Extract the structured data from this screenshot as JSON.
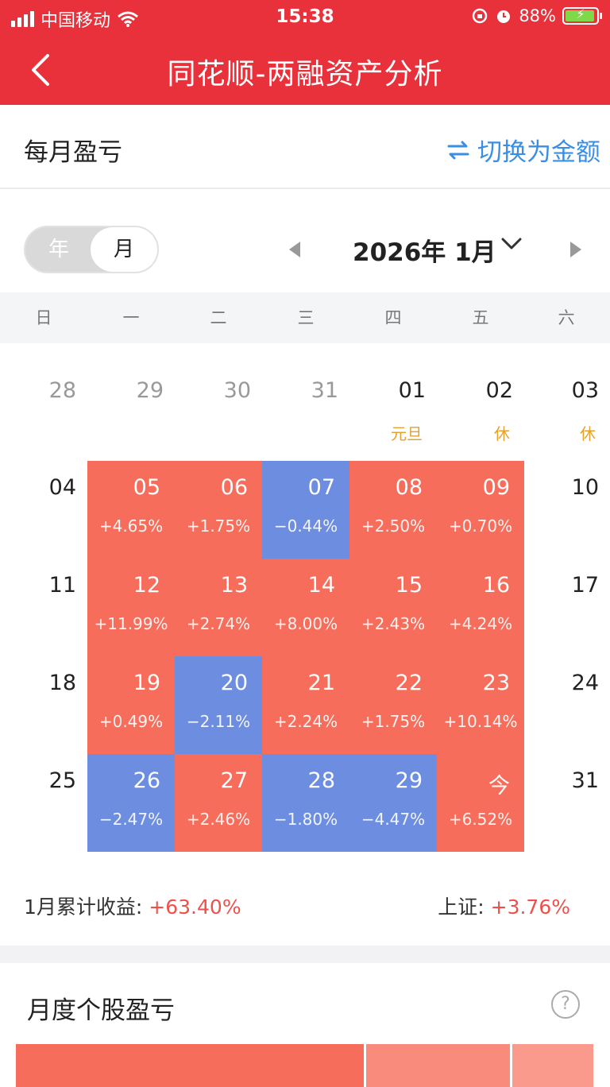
{
  "status_bar": {
    "carrier": "中国移动",
    "time": "15:38",
    "battery": "88%",
    "icons": [
      "signal-icon",
      "wifi-icon",
      "lock-rotation-icon",
      "alarm-icon",
      "battery-charging-icon"
    ]
  },
  "nav": {
    "title": "同花顺-两融资产分析",
    "back_icon": "back-chevron-icon"
  },
  "monthly": {
    "title": "每月盈亏",
    "switch_label": "切换为金额",
    "switch_icon": "swap-icon",
    "toggle": {
      "year": "年",
      "month": "月",
      "selected": "月"
    },
    "month_label": "2026年 1月",
    "weekdays": [
      "日",
      "一",
      "二",
      "三",
      "四",
      "五",
      "六"
    ],
    "calendar": {
      "row0": [
        {
          "day": "28"
        },
        {
          "day": "29"
        },
        {
          "day": "30"
        },
        {
          "day": "31"
        },
        {
          "day": "01",
          "holiday": "元旦"
        },
        {
          "day": "02",
          "holiday": "休"
        },
        {
          "day": "03",
          "holiday": "休"
        }
      ],
      "row1": [
        {
          "day": "04"
        },
        {
          "day": "05",
          "pct": "+4.65%",
          "color": "#f76d5c"
        },
        {
          "day": "06",
          "pct": "+1.75%",
          "color": "#f76d5c"
        },
        {
          "day": "07",
          "pct": "−0.44%",
          "color": "#6d8ee0"
        },
        {
          "day": "08",
          "pct": "+2.50%",
          "color": "#f76d5c"
        },
        {
          "day": "09",
          "pct": "+0.70%",
          "color": "#f76d5c"
        },
        {
          "day": "10"
        }
      ],
      "row2": [
        {
          "day": "11"
        },
        {
          "day": "12",
          "pct": "+11.99%",
          "color": "#f76d5c"
        },
        {
          "day": "13",
          "pct": "+2.74%",
          "color": "#f76d5c"
        },
        {
          "day": "14",
          "pct": "+8.00%",
          "color": "#f76d5c"
        },
        {
          "day": "15",
          "pct": "+2.43%",
          "color": "#f76d5c"
        },
        {
          "day": "16",
          "pct": "+4.24%",
          "color": "#f76d5c"
        },
        {
          "day": "17"
        }
      ],
      "row3": [
        {
          "day": "18"
        },
        {
          "day": "19",
          "pct": "+0.49%",
          "color": "#f76d5c"
        },
        {
          "day": "20",
          "pct": "−2.11%",
          "color": "#6d8ee0"
        },
        {
          "day": "21",
          "pct": "+2.24%",
          "color": "#f76d5c"
        },
        {
          "day": "22",
          "pct": "+1.75%",
          "color": "#f76d5c"
        },
        {
          "day": "23",
          "pct": "+10.14%",
          "color": "#f76d5c"
        },
        {
          "day": "24"
        }
      ],
      "row4": [
        {
          "day": "25"
        },
        {
          "day": "26",
          "pct": "−2.47%",
          "color": "#6d8ee0"
        },
        {
          "day": "27",
          "pct": "+2.46%",
          "color": "#f76d5c"
        },
        {
          "day": "28",
          "pct": "−1.80%",
          "color": "#6d8ee0"
        },
        {
          "day": "29",
          "pct": "−4.47%",
          "color": "#6d8ee0"
        },
        {
          "day": "今",
          "pct": "+6.52%",
          "color": "#f76d5c"
        },
        {
          "day": "31"
        }
      ]
    },
    "summary": {
      "cum_label": "1月累计收益:",
      "cum_value": "+63.40%",
      "index_label": "上证:",
      "index_value": "+3.76%"
    }
  },
  "stocks": {
    "title": "月度个股盈亏",
    "help_icon": "question-circle-icon",
    "help_text": "?",
    "colors": [
      "#f76d5c",
      "#f98b7c",
      "#fa9a8d"
    ]
  }
}
